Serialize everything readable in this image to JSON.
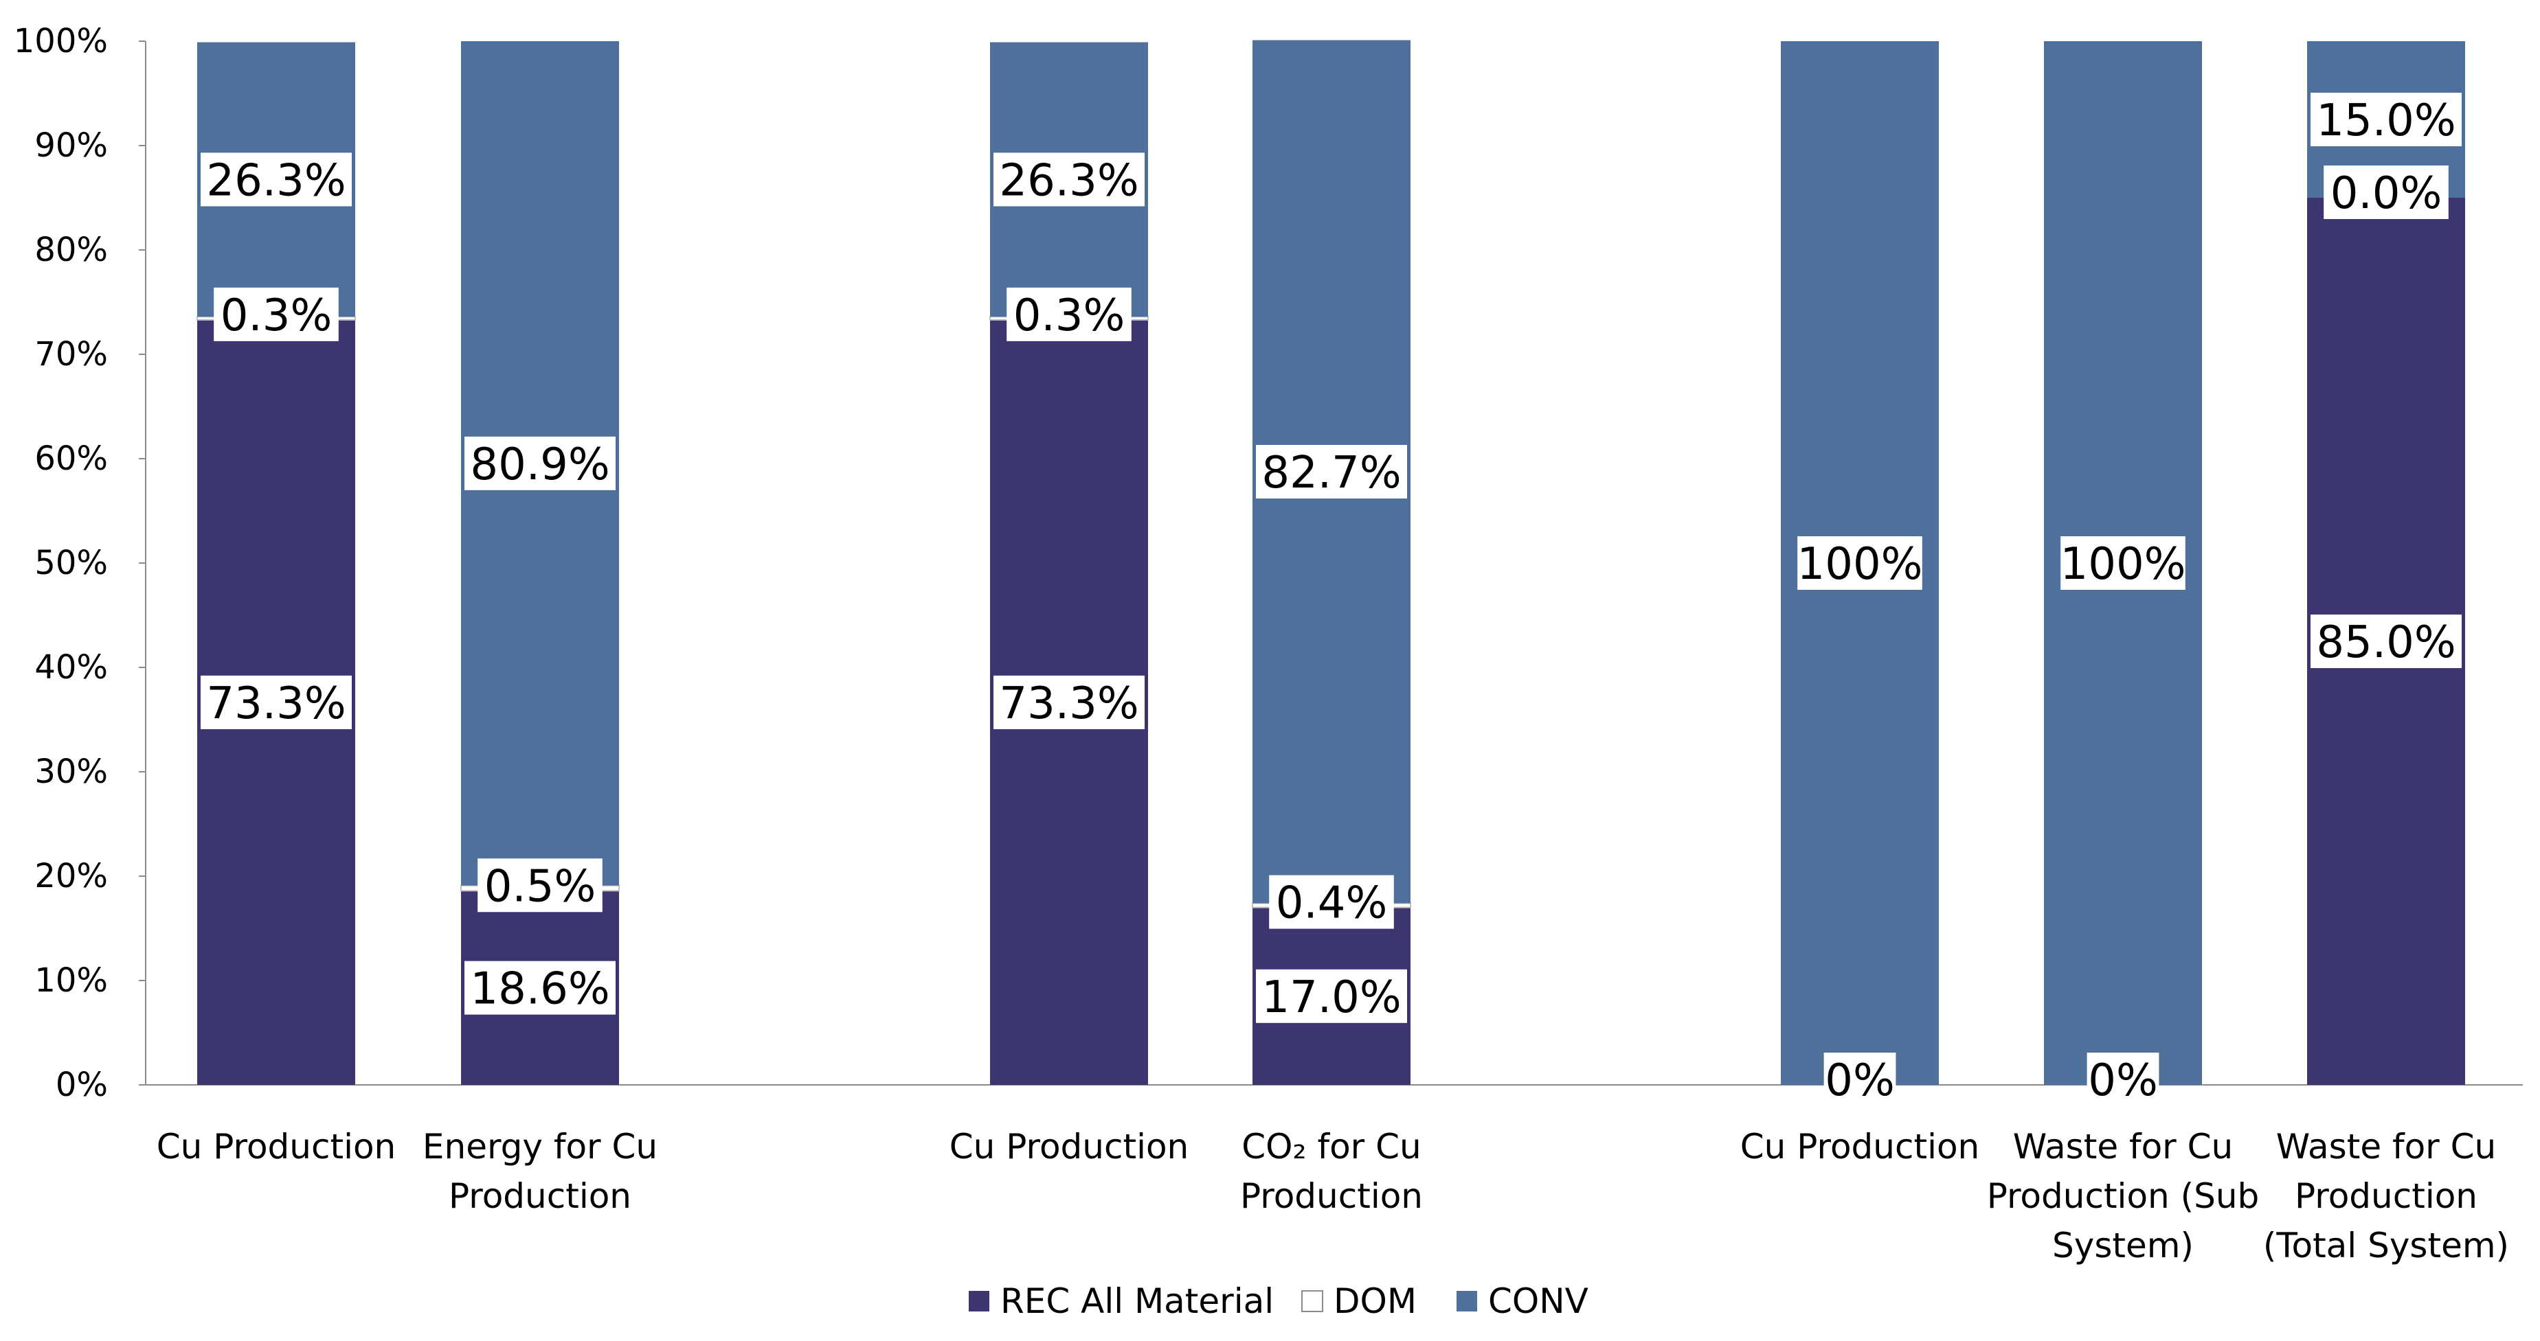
{
  "chart_data": {
    "type": "bar",
    "stacked": true,
    "normalized": true,
    "categories": [
      {
        "lines": [
          "Cu Production"
        ]
      },
      {
        "lines": [
          "Energy for Cu",
          "Production"
        ]
      },
      {
        "lines": [
          "Cu Production"
        ]
      },
      {
        "lines": [
          "CO₂  for Cu",
          "Production"
        ]
      },
      {
        "lines": [
          "Cu Production"
        ]
      },
      {
        "lines": [
          "Waste for Cu",
          "Production (Sub",
          "System)"
        ]
      },
      {
        "lines": [
          "Waste for Cu",
          "Production",
          "(Total System)"
        ]
      }
    ],
    "category_groups": [
      [
        0,
        1
      ],
      [
        2,
        3
      ],
      [
        4,
        5,
        6
      ]
    ],
    "series": [
      {
        "name": "REC All Material",
        "color": "#3d3570",
        "values": [
          73.3,
          18.6,
          73.3,
          17.0,
          0,
          0,
          85.0
        ],
        "labels": [
          "73.3%",
          "18.6%",
          "73.3%",
          "17.0%",
          "0%",
          "0%",
          "85.0%"
        ]
      },
      {
        "name": "DOM",
        "color": "#ffffff",
        "values": [
          0.3,
          0.5,
          0.3,
          0.4,
          0,
          0,
          0.0
        ],
        "labels": [
          "0.3%",
          "0.5%",
          "0.3%",
          "0.4%",
          null,
          null,
          "0.0%"
        ]
      },
      {
        "name": "CONV",
        "color": "#4f709a",
        "values": [
          26.3,
          80.9,
          26.3,
          82.7,
          100,
          100,
          15.0
        ],
        "labels": [
          "26.3%",
          "80.9%",
          "26.3%",
          "82.7%",
          "100%",
          "100%",
          "15.0%"
        ]
      }
    ],
    "ylim": [
      0,
      100
    ],
    "yticks": [
      0,
      10,
      20,
      30,
      40,
      50,
      60,
      70,
      80,
      90,
      100
    ],
    "ytick_labels": [
      "0%",
      "10%",
      "20%",
      "30%",
      "40%",
      "50%",
      "60%",
      "70%",
      "80%",
      "90%",
      "100%"
    ],
    "grid": false,
    "legend": "bottom-center",
    "title": "",
    "xlabel": "",
    "ylabel": ""
  }
}
